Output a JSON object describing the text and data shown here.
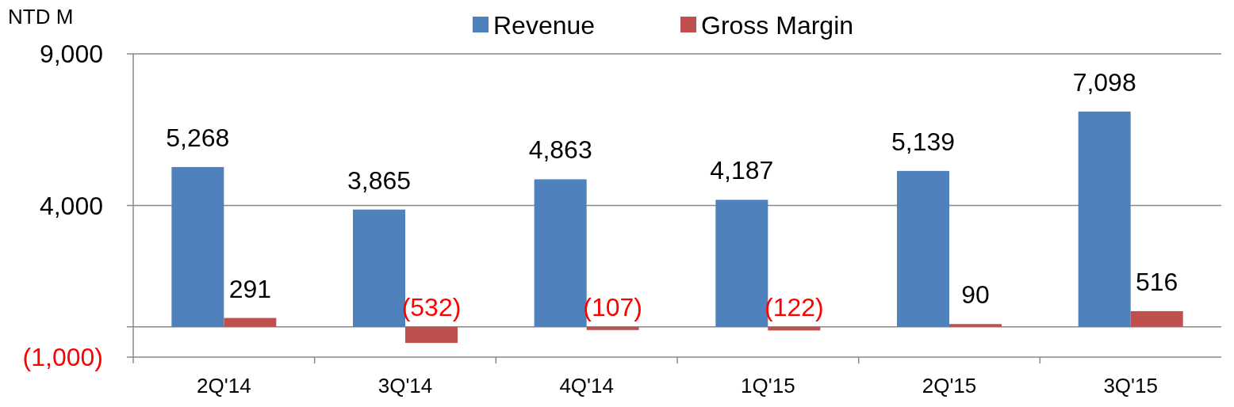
{
  "chart_data": {
    "type": "bar",
    "ylabel": "NTD M",
    "categories": [
      "2Q'14",
      "3Q'14",
      "4Q'14",
      "1Q'15",
      "2Q'15",
      "3Q'15"
    ],
    "series": [
      {
        "name": "Revenue",
        "color": "#4f81bd",
        "values": [
          5268,
          3865,
          4863,
          4187,
          5139,
          7098
        ],
        "value_labels": [
          "5,268",
          "3,865",
          "4,863",
          "4,187",
          "5,139",
          "7,098"
        ]
      },
      {
        "name": "Gross Margin",
        "color": "#c0504d",
        "values": [
          291,
          -532,
          -107,
          -122,
          90,
          516
        ],
        "value_labels": [
          "291",
          "(532)",
          "(107)",
          "(122)",
          "90",
          "516"
        ]
      }
    ],
    "ylim": [
      -1000,
      9000
    ],
    "yticks": [
      {
        "value": -1000,
        "label": "(1,000)"
      },
      {
        "value": 0,
        "label": null
      },
      {
        "value": 4000,
        "label": "4,000"
      },
      {
        "value": 9000,
        "label": "9,000"
      }
    ],
    "grid": "y",
    "legend": "top"
  }
}
